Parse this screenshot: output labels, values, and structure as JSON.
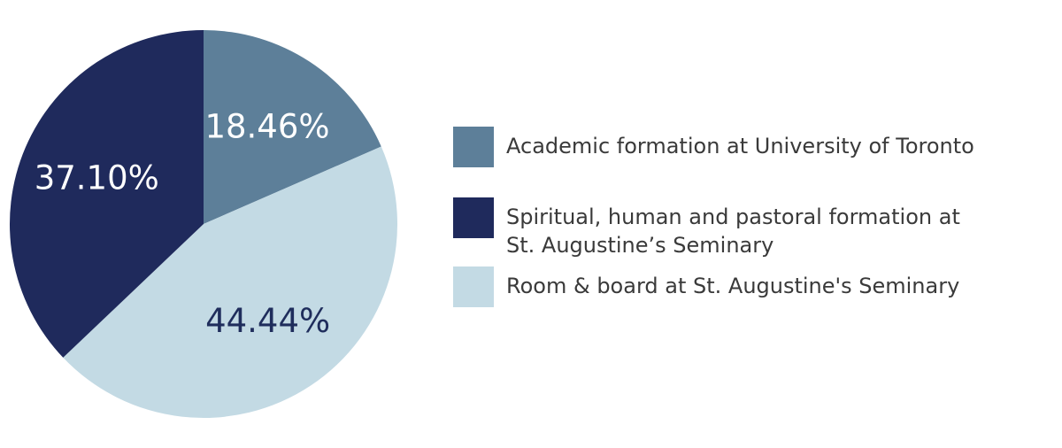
{
  "chart_data": {
    "type": "pie",
    "title": "",
    "legend_position": "right",
    "slices": [
      {
        "label": "Academic formation at University of Toronto",
        "value": 18.46,
        "display": "18.46%",
        "color": "#5d7f99",
        "text_color": "#ffffff"
      },
      {
        "label": "Room & board at St. Augustine's Seminary",
        "value": 44.44,
        "display": "44.44%",
        "color": "#c3dae4",
        "text_color": "#1f2d5c"
      },
      {
        "label": "Spiritual, human and pastoral formation at\nSt. Augustine’s Seminary",
        "value": 37.1,
        "display": "37.10%",
        "color": "#1f2a5c",
        "text_color": "#ffffff"
      }
    ],
    "legend_order": [
      0,
      2,
      1
    ]
  }
}
